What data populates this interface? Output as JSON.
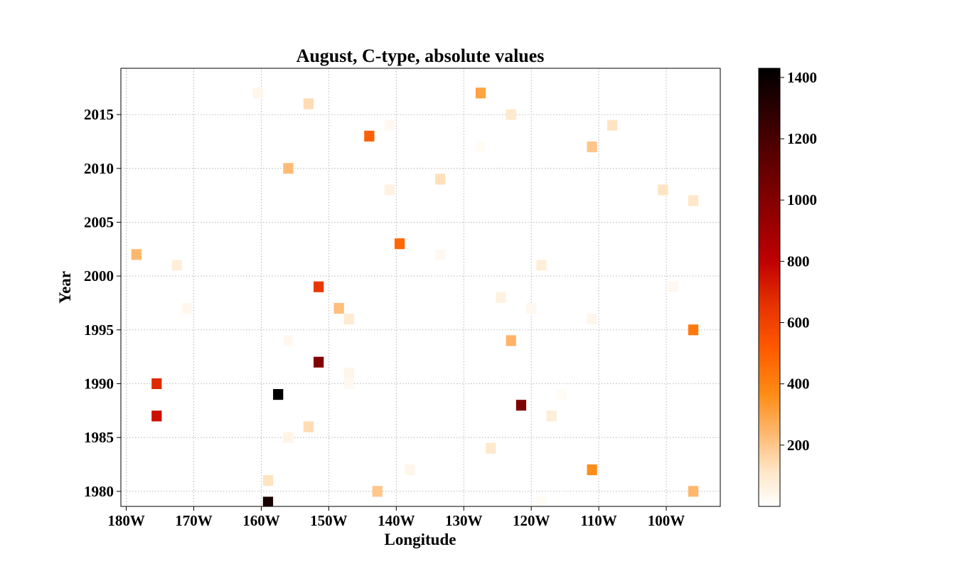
{
  "chart_data": {
    "type": "heatmap",
    "title": "August, C-type, absolute values",
    "xlabel": "Longitude",
    "ylabel": "Year",
    "xlim": [
      -180.8,
      -92.0
    ],
    "ylim": [
      1978.6,
      2019.3
    ],
    "xticks": [
      -180,
      -170,
      -160,
      -150,
      -140,
      -130,
      -120,
      -110,
      -100
    ],
    "xtick_labels": [
      "180W",
      "170W",
      "160W",
      "150W",
      "140W",
      "130W",
      "120W",
      "110W",
      "100W"
    ],
    "yticks": [
      1980,
      1985,
      1990,
      1995,
      2000,
      2005,
      2010,
      2015
    ],
    "ytick_labels": [
      "1980",
      "1985",
      "1990",
      "1995",
      "2000",
      "2005",
      "2010",
      "2015"
    ],
    "grid": true,
    "colormap": "gist_heat_r",
    "colorbar": {
      "min": 0,
      "max": 1430,
      "ticks": [
        200,
        400,
        600,
        800,
        1000,
        1200,
        1400
      ]
    },
    "cell_size_deg": 1.5,
    "points": [
      {
        "lon": -159.0,
        "year": 1979,
        "value": 1350
      },
      {
        "lon": -142.8,
        "year": 1980,
        "value": 200
      },
      {
        "lon": -96.0,
        "year": 1980,
        "value": 240
      },
      {
        "lon": -159.0,
        "year": 1981,
        "value": 120
      },
      {
        "lon": -138.0,
        "year": 1982,
        "value": 40
      },
      {
        "lon": -111.0,
        "year": 1982,
        "value": 360
      },
      {
        "lon": -126.0,
        "year": 1984,
        "value": 100
      },
      {
        "lon": -156.0,
        "year": 1985,
        "value": 50
      },
      {
        "lon": -153.0,
        "year": 1986,
        "value": 140
      },
      {
        "lon": -175.5,
        "year": 1987,
        "value": 760
      },
      {
        "lon": -117.0,
        "year": 1987,
        "value": 80
      },
      {
        "lon": -121.5,
        "year": 1988,
        "value": 1020
      },
      {
        "lon": -157.5,
        "year": 1989,
        "value": 1430
      },
      {
        "lon": -115.5,
        "year": 1989,
        "value": 20
      },
      {
        "lon": -175.5,
        "year": 1990,
        "value": 680
      },
      {
        "lon": -147.0,
        "year": 1990,
        "value": 30
      },
      {
        "lon": -147.0,
        "year": 1991,
        "value": 40
      },
      {
        "lon": -151.5,
        "year": 1992,
        "value": 1000
      },
      {
        "lon": -156.0,
        "year": 1994,
        "value": 30
      },
      {
        "lon": -123.0,
        "year": 1994,
        "value": 250
      },
      {
        "lon": -96.0,
        "year": 1995,
        "value": 420
      },
      {
        "lon": -147.0,
        "year": 1996,
        "value": 90
      },
      {
        "lon": -111.0,
        "year": 1996,
        "value": 40
      },
      {
        "lon": -171.0,
        "year": 1997,
        "value": 30
      },
      {
        "lon": -148.5,
        "year": 1997,
        "value": 220
      },
      {
        "lon": -120.0,
        "year": 1997,
        "value": 30
      },
      {
        "lon": -124.5,
        "year": 1998,
        "value": 60
      },
      {
        "lon": -151.5,
        "year": 1999,
        "value": 640
      },
      {
        "lon": -99.0,
        "year": 1999,
        "value": 30
      },
      {
        "lon": -172.5,
        "year": 2001,
        "value": 80
      },
      {
        "lon": -118.5,
        "year": 2001,
        "value": 80
      },
      {
        "lon": -178.5,
        "year": 2002,
        "value": 240
      },
      {
        "lon": -133.5,
        "year": 2002,
        "value": 30
      },
      {
        "lon": -139.5,
        "year": 2003,
        "value": 480
      },
      {
        "lon": -96.0,
        "year": 2007,
        "value": 110
      },
      {
        "lon": -141.0,
        "year": 2008,
        "value": 60
      },
      {
        "lon": -100.5,
        "year": 2008,
        "value": 120
      },
      {
        "lon": -133.5,
        "year": 2009,
        "value": 130
      },
      {
        "lon": -156.0,
        "year": 2010,
        "value": 230
      },
      {
        "lon": -127.5,
        "year": 2012,
        "value": 20
      },
      {
        "lon": -111.0,
        "year": 2012,
        "value": 200
      },
      {
        "lon": -144.0,
        "year": 2013,
        "value": 500
      },
      {
        "lon": -141.0,
        "year": 2014,
        "value": 30
      },
      {
        "lon": -108.0,
        "year": 2014,
        "value": 120
      },
      {
        "lon": -123.0,
        "year": 2015,
        "value": 100
      },
      {
        "lon": -153.0,
        "year": 2016,
        "value": 140
      },
      {
        "lon": -160.5,
        "year": 2017,
        "value": 40
      },
      {
        "lon": -127.5,
        "year": 2017,
        "value": 300
      },
      {
        "lon": -118.5,
        "year": 1979,
        "value": 20
      }
    ]
  }
}
